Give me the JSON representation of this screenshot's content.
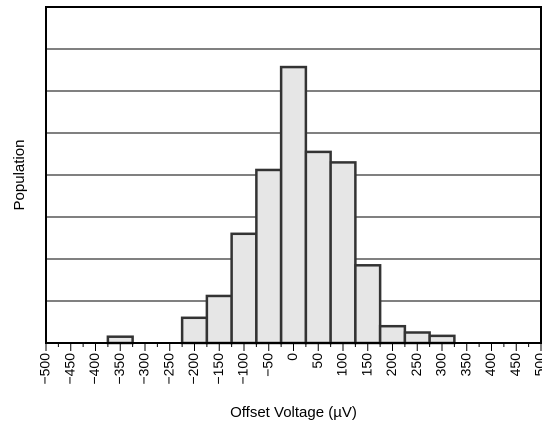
{
  "chart_data": {
    "type": "bar",
    "title": "",
    "xlabel": "Offset Voltage (µV)",
    "ylabel": "Population",
    "bin_width": 50,
    "xlim": [
      -500,
      500
    ],
    "ylim": [
      0,
      8
    ],
    "x_ticks": [
      -500,
      -450,
      -400,
      -350,
      -300,
      -250,
      -200,
      -150,
      -100,
      -50,
      0,
      50,
      100,
      150,
      200,
      250,
      300,
      350,
      400,
      450,
      500
    ],
    "x_tick_labels": [
      "−500",
      "−450",
      "−400",
      "−350",
      "−300",
      "−250",
      "−200",
      "−150",
      "−100",
      "−50",
      "0",
      "50",
      "100",
      "150",
      "200",
      "250",
      "300",
      "350",
      "400",
      "450",
      "500"
    ],
    "y_gridlines": [
      1,
      2,
      3,
      4,
      5,
      6,
      7
    ],
    "y_tick_labels_shown": false,
    "grid": "horizontal",
    "legend": "none",
    "bar_color": "#e6e6e6",
    "bar_edge_color": "#333333",
    "bins": [
      {
        "center": -350,
        "value": 0.15
      },
      {
        "center": -200,
        "value": 0.6
      },
      {
        "center": -150,
        "value": 1.12
      },
      {
        "center": -100,
        "value": 2.6
      },
      {
        "center": -50,
        "value": 4.12
      },
      {
        "center": 0,
        "value": 6.57
      },
      {
        "center": 50,
        "value": 4.55
      },
      {
        "center": 100,
        "value": 4.3
      },
      {
        "center": 150,
        "value": 1.85
      },
      {
        "center": 200,
        "value": 0.4
      },
      {
        "center": 250,
        "value": 0.25
      },
      {
        "center": 300,
        "value": 0.17
      }
    ]
  }
}
